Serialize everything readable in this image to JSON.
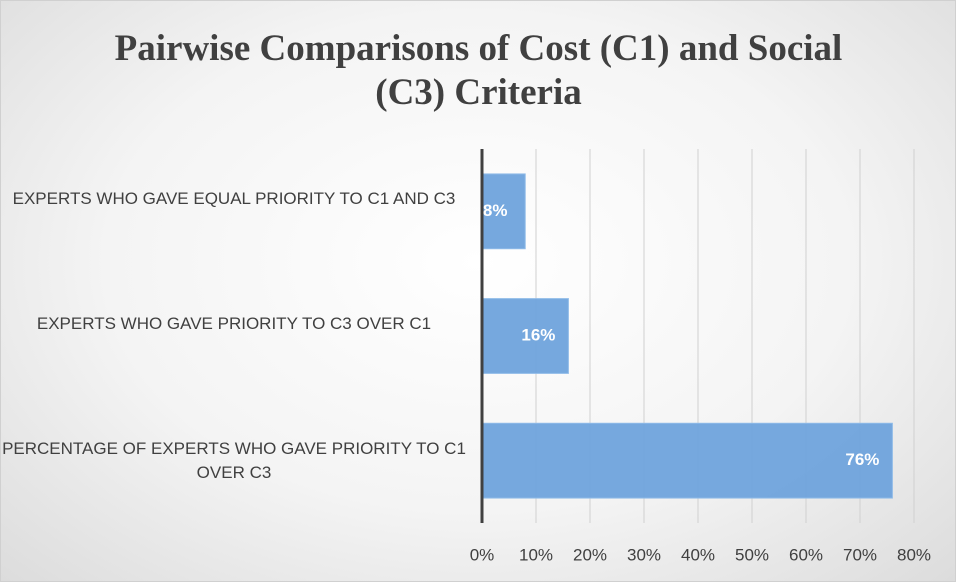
{
  "chart_data": {
    "type": "bar",
    "orientation": "horizontal",
    "title": "Pairwise Comparisons of Cost (C1) and Social (C3) Criteria",
    "categories": [
      "EXPERTS WHO GAVE EQUAL PRIORITY TO C1 AND C3",
      "EXPERTS WHO GAVE PRIORITY TO C3 OVER C1",
      "PERCENTAGE OF EXPERTS WHO GAVE PRIORITY TO C1 OVER C3"
    ],
    "values": [
      8,
      16,
      76
    ],
    "value_labels": [
      "8%",
      "16%",
      "76%"
    ],
    "color": "#6fa3dc",
    "xlim": [
      0,
      80
    ],
    "xticks": [
      {
        "value": 0,
        "label": "0%"
      },
      {
        "value": 10,
        "label": "10%"
      },
      {
        "value": 20,
        "label": "20%"
      },
      {
        "value": 30,
        "label": "30%"
      },
      {
        "value": 40,
        "label": "40%"
      },
      {
        "value": 50,
        "label": "50%"
      },
      {
        "value": 60,
        "label": "60%"
      },
      {
        "value": 70,
        "label": "70%"
      },
      {
        "value": 80,
        "label": "80%"
      }
    ],
    "grid": true
  }
}
